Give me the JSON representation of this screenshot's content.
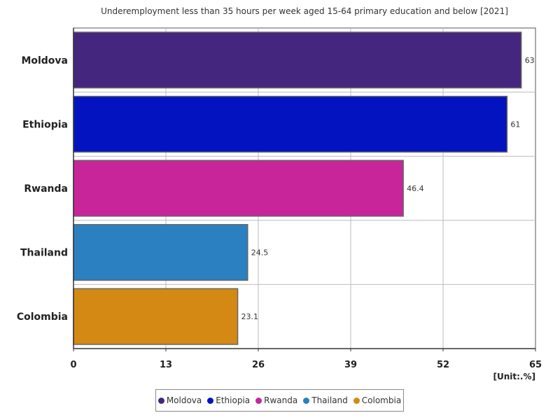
{
  "chart_data": {
    "type": "bar",
    "orientation": "horizontal",
    "title": "Underemployment less than 35 hours per week aged 15-64 primary education and below [2021]",
    "unit_label": "[Unit:.%]",
    "categories": [
      "Moldova",
      "Ethiopia",
      "Rwanda",
      "Thailand",
      "Colombia"
    ],
    "values": [
      63,
      61,
      46.4,
      24.5,
      23.1
    ],
    "value_labels": [
      "63",
      "61",
      "46.4",
      "24.5",
      "23.1"
    ],
    "colors": [
      "#45267f",
      "#0313c0",
      "#c8259b",
      "#2a80c0",
      "#d38914"
    ],
    "xlim": [
      0,
      65
    ],
    "xticks": [
      "0",
      "13",
      "26",
      "39",
      "52",
      "65"
    ],
    "grid": true,
    "legend_position": "bottom",
    "legend": [
      "Moldova",
      "Ethiopia",
      "Rwanda",
      "Thailand",
      "Colombia"
    ]
  }
}
